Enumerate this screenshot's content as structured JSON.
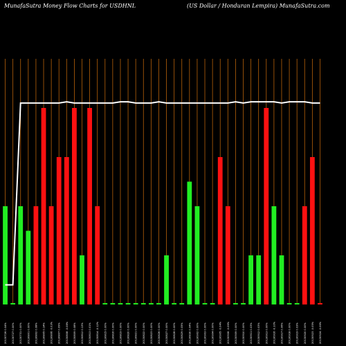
{
  "header": {
    "title": "MunafaSutra  Money Flow  Charts for USDHNL",
    "subtitle": "(US Dollar / Honduran  Lempira) MunafaSutra.com"
  },
  "colors": {
    "background": "#000000",
    "grid": "#b8620a",
    "up": "#22ee22",
    "down": "#ff1111",
    "line": "#ffffff"
  },
  "chart_data": {
    "type": "bar",
    "categories": [
      "20130726 0.04%",
      "20130727 0.00%",
      "20130731 0.00%",
      "20130801 0.00%",
      "20130802 0.08%",
      "20130805 0.14%",
      "20130806 -0.03%",
      "20130807 0.09%",
      "20130808 -0.08%",
      "20130809 0.08%",
      "20130812 0.13%",
      "20130813 0.01%",
      "20130814 -0.12%",
      "20130815 0.00%",
      "20130816 0.00%",
      "20130819 0.00%",
      "20130820 0.00%",
      "20130821 0.00%",
      "20130822 0.00%",
      "20130823 0.00%",
      "20130826 0.00%",
      "20130827 0.00%",
      "20130828 0.00%",
      "20130829 0.05%",
      "20130830 0.04%",
      "20130902 0.00%",
      "20130903 0.00%",
      "20130904 0.00%",
      "20130905 -0.04%",
      "20130906 -0.06%",
      "20130909 0.00%",
      "20130910 0.00%",
      "20130911 0.03%",
      "20130912 0.03%",
      "20130913 0.00%",
      "20130916 -0.10%",
      "20130917 0.06%",
      "20130918 0.00%",
      "20130919 0.03%",
      "20130920 0.00%",
      "20130923 -0.05%",
      "20130924 -0.06%"
    ],
    "values": [
      4,
      0,
      4,
      3,
      4,
      8,
      4,
      6,
      6,
      8,
      2,
      8,
      4,
      0,
      0,
      0,
      0,
      0,
      0,
      0,
      0,
      2,
      0,
      0,
      5,
      4,
      0,
      0,
      6,
      4,
      0,
      0,
      2,
      2,
      8,
      4,
      2,
      0,
      0,
      4,
      6,
      0
    ],
    "directions": [
      "up",
      "up",
      "up",
      "up",
      "down",
      "down",
      "down",
      "down",
      "down",
      "down",
      "up",
      "down",
      "down",
      "up",
      "up",
      "up",
      "up",
      "up",
      "up",
      "up",
      "up",
      "up",
      "up",
      "up",
      "up",
      "up",
      "up",
      "up",
      "down",
      "down",
      "up",
      "up",
      "up",
      "up",
      "down",
      "up",
      "up",
      "up",
      "up",
      "down",
      "down",
      "down"
    ],
    "flow_line": [
      0.8,
      0.8,
      8.2,
      8.2,
      8.2,
      8.2,
      8.2,
      8.2,
      8.25,
      8.2,
      8.2,
      8.2,
      8.2,
      8.2,
      8.2,
      8.25,
      8.25,
      8.2,
      8.2,
      8.2,
      8.25,
      8.2,
      8.2,
      8.2,
      8.2,
      8.2,
      8.2,
      8.2,
      8.2,
      8.2,
      8.25,
      8.2,
      8.25,
      8.25,
      8.25,
      8.25,
      8.2,
      8.25,
      8.25,
      8.25,
      8.2,
      8.2
    ],
    "ylim": [
      0,
      10
    ],
    "grid": true
  }
}
